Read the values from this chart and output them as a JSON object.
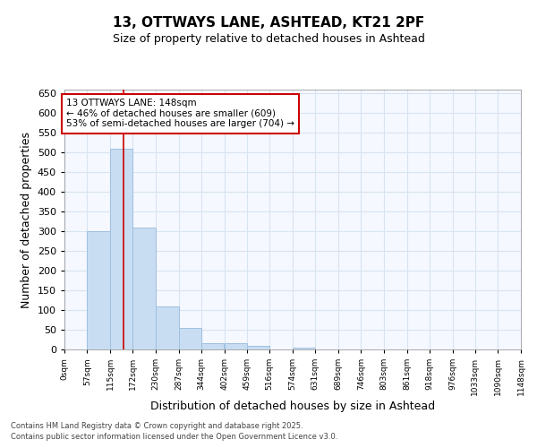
{
  "title1": "13, OTTWAYS LANE, ASHTEAD, KT21 2PF",
  "title2": "Size of property relative to detached houses in Ashtead",
  "xlabel": "Distribution of detached houses by size in Ashtead",
  "ylabel": "Number of detached properties",
  "bar_color": "#c8ddf2",
  "bar_edge_color": "#a0c0e0",
  "background_color": "#ffffff",
  "plot_bg_color": "#f5f8ff",
  "grid_color": "#d8e4f0",
  "annotation_box_color": "#cc0000",
  "property_line_color": "#cc0000",
  "property_value": 148,
  "annotation_text_line1": "13 OTTWAYS LANE: 148sqm",
  "annotation_text_line2": "← 46% of detached houses are smaller (609)",
  "annotation_text_line3": "53% of semi-detached houses are larger (704) →",
  "footer_line1": "Contains HM Land Registry data © Crown copyright and database right 2025.",
  "footer_line2": "Contains public sector information licensed under the Open Government Licence v3.0.",
  "bin_edges": [
    0,
    57,
    115,
    172,
    230,
    287,
    344,
    402,
    459,
    516,
    574,
    631,
    689,
    746,
    803,
    861,
    918,
    976,
    1033,
    1090,
    1148
  ],
  "bin_labels": [
    "0sqm",
    "57sqm",
    "115sqm",
    "172sqm",
    "230sqm",
    "287sqm",
    "344sqm",
    "402sqm",
    "459sqm",
    "516sqm",
    "574sqm",
    "631sqm",
    "689sqm",
    "746sqm",
    "803sqm",
    "861sqm",
    "918sqm",
    "976sqm",
    "1033sqm",
    "1090sqm",
    "1148sqm"
  ],
  "counts": [
    0,
    300,
    510,
    310,
    110,
    55,
    15,
    15,
    8,
    0,
    5,
    0,
    0,
    0,
    0,
    0,
    0,
    0,
    0,
    0
  ],
  "ylim": [
    0,
    660
  ],
  "yticks": [
    0,
    50,
    100,
    150,
    200,
    250,
    300,
    350,
    400,
    450,
    500,
    550,
    600,
    650
  ]
}
